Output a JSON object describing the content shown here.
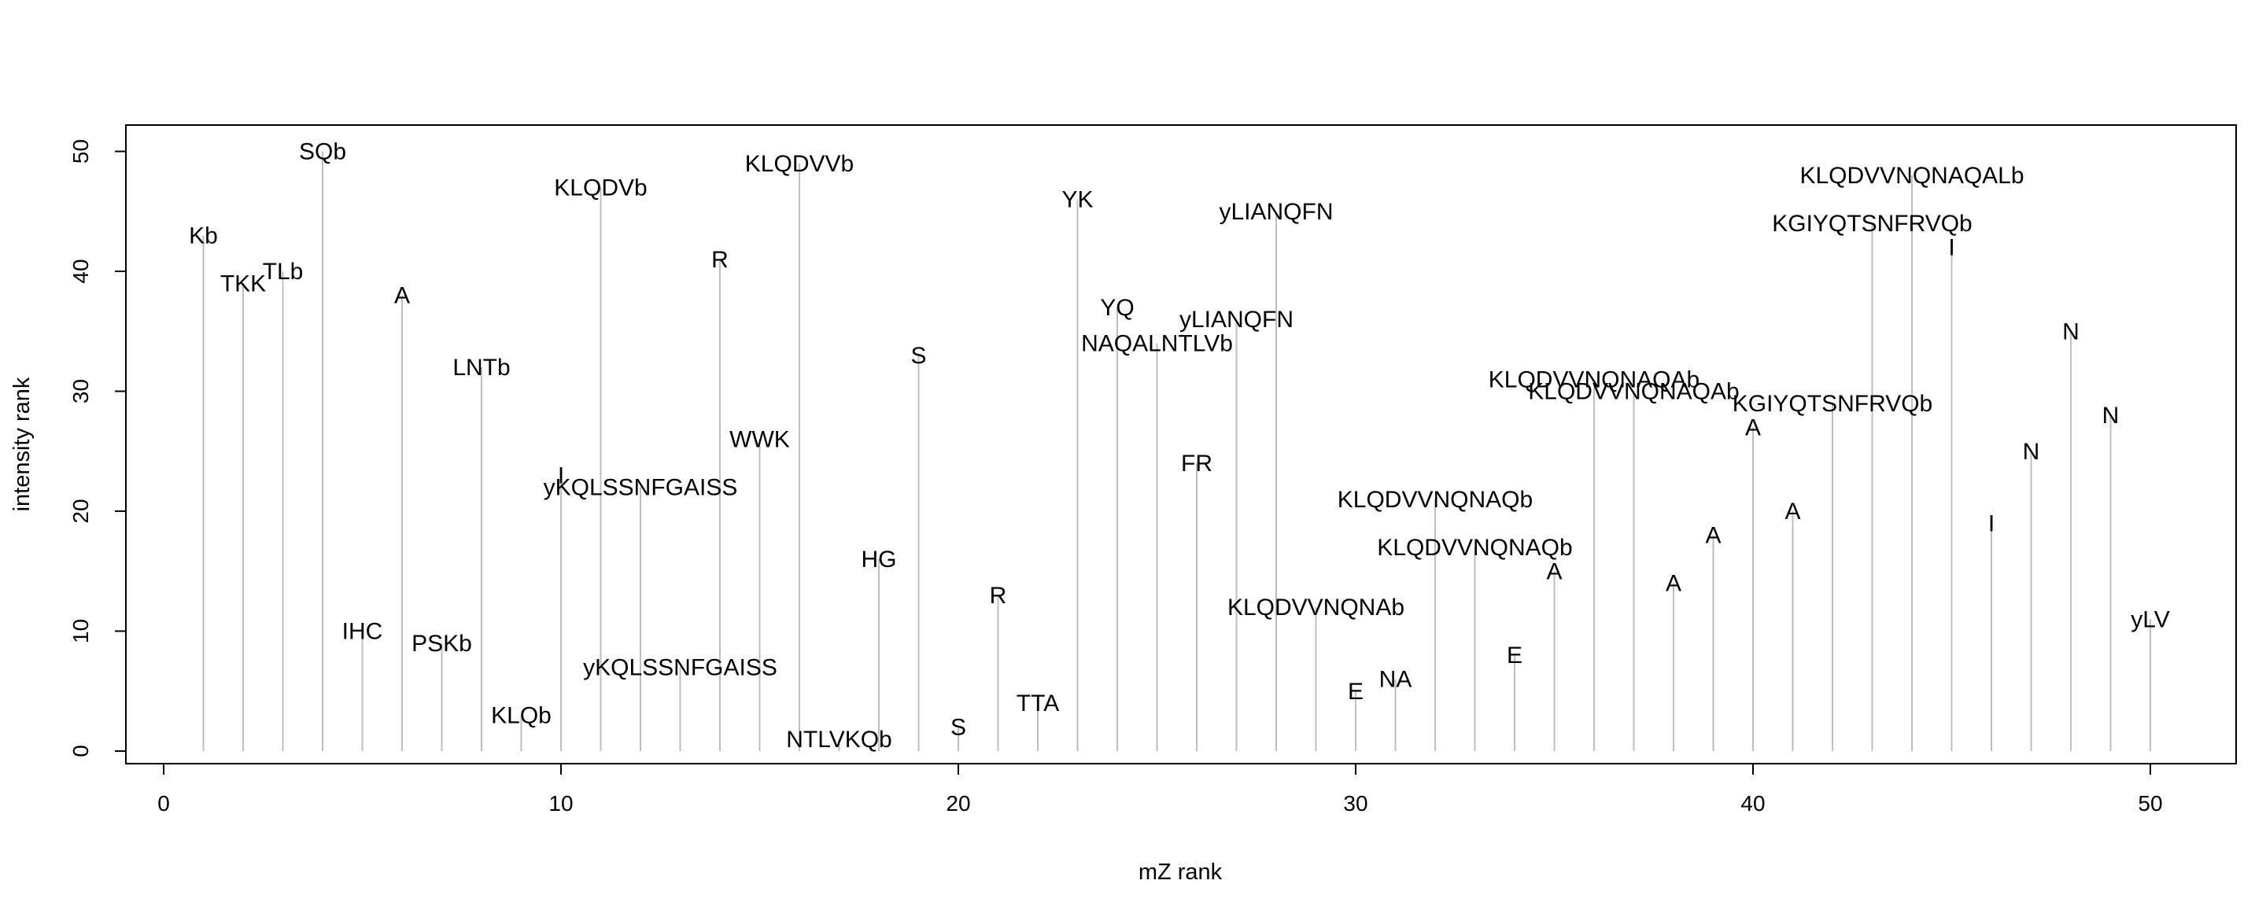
{
  "chart_data": {
    "type": "spike-scatter",
    "title": "",
    "xlabel": "mZ rank",
    "ylabel": "intensity rank",
    "xlim": [
      0,
      51
    ],
    "ylim": [
      0,
      52
    ],
    "xticks": [
      0,
      10,
      20,
      30,
      40,
      50
    ],
    "yticks": [
      0,
      10,
      20,
      30,
      40,
      50
    ],
    "grid": false,
    "legend": "none",
    "spike_color": "#bebebe",
    "points": [
      {
        "x": 1,
        "y": 43,
        "label": "Kb"
      },
      {
        "x": 2,
        "y": 39,
        "label": "TKK"
      },
      {
        "x": 3,
        "y": 40,
        "label": "TLb"
      },
      {
        "x": 4,
        "y": 50,
        "label": "SQb"
      },
      {
        "x": 5,
        "y": 10,
        "label": "IHC"
      },
      {
        "x": 6,
        "y": 38,
        "label": "A"
      },
      {
        "x": 7,
        "y": 9,
        "label": "PSKb"
      },
      {
        "x": 8,
        "y": 32,
        "label": "LNTb"
      },
      {
        "x": 9,
        "y": 3,
        "label": "KLQb"
      },
      {
        "x": 10,
        "y": 23,
        "label": "I"
      },
      {
        "x": 11,
        "y": 47,
        "label": "KLQDVb"
      },
      {
        "x": 12,
        "y": 22,
        "label": "yKQLSSNFGAISS"
      },
      {
        "x": 13,
        "y": 7,
        "label": "yKQLSSNFGAISS"
      },
      {
        "x": 14,
        "y": 41,
        "label": "R"
      },
      {
        "x": 15,
        "y": 26,
        "label": "WWK"
      },
      {
        "x": 16,
        "y": 49,
        "label": "KLQDVVb"
      },
      {
        "x": 17,
        "y": 1,
        "label": "NTLVKQb"
      },
      {
        "x": 18,
        "y": 16,
        "label": "HG"
      },
      {
        "x": 19,
        "y": 33,
        "label": "S"
      },
      {
        "x": 20,
        "y": 2,
        "label": "S"
      },
      {
        "x": 21,
        "y": 13,
        "label": "R"
      },
      {
        "x": 22,
        "y": 4,
        "label": "TTA"
      },
      {
        "x": 23,
        "y": 46,
        "label": "YK"
      },
      {
        "x": 24,
        "y": 37,
        "label": "YQ"
      },
      {
        "x": 25,
        "y": 34,
        "label": "NAQALNTLVb"
      },
      {
        "x": 26,
        "y": 24,
        "label": "FR"
      },
      {
        "x": 27,
        "y": 36,
        "label": "yLIANQFN"
      },
      {
        "x": 28,
        "y": 45,
        "label": "yLIANQFN"
      },
      {
        "x": 29,
        "y": 12,
        "label": "KLQDVVNQNAb"
      },
      {
        "x": 30,
        "y": 5,
        "label": "E"
      },
      {
        "x": 31,
        "y": 6,
        "label": "NA"
      },
      {
        "x": 32,
        "y": 21,
        "label": "KLQDVVNQNAQb"
      },
      {
        "x": 33,
        "y": 17,
        "label": "KLQDVVNQNAQb"
      },
      {
        "x": 34,
        "y": 8,
        "label": "E"
      },
      {
        "x": 35,
        "y": 15,
        "label": "A"
      },
      {
        "x": 36,
        "y": 31,
        "label": "KLQDVVNQNAQAb"
      },
      {
        "x": 37,
        "y": 30,
        "label": "KLQDVVNQNAQAb"
      },
      {
        "x": 38,
        "y": 14,
        "label": "A"
      },
      {
        "x": 39,
        "y": 18,
        "label": "A"
      },
      {
        "x": 40,
        "y": 27,
        "label": "A"
      },
      {
        "x": 41,
        "y": 20,
        "label": "A"
      },
      {
        "x": 42,
        "y": 29,
        "label": "KGIYQTSNFRVQb"
      },
      {
        "x": 43,
        "y": 44,
        "label": "KGIYQTSNFRVQb"
      },
      {
        "x": 44,
        "y": 48,
        "label": "KLQDVVNQNAQALb"
      },
      {
        "x": 45,
        "y": 42,
        "label": "I"
      },
      {
        "x": 46,
        "y": 19,
        "label": "I"
      },
      {
        "x": 47,
        "y": 25,
        "label": "N"
      },
      {
        "x": 48,
        "y": 35,
        "label": "N"
      },
      {
        "x": 49,
        "y": 28,
        "label": "N"
      },
      {
        "x": 50,
        "y": 11,
        "label": "yLV"
      }
    ]
  }
}
